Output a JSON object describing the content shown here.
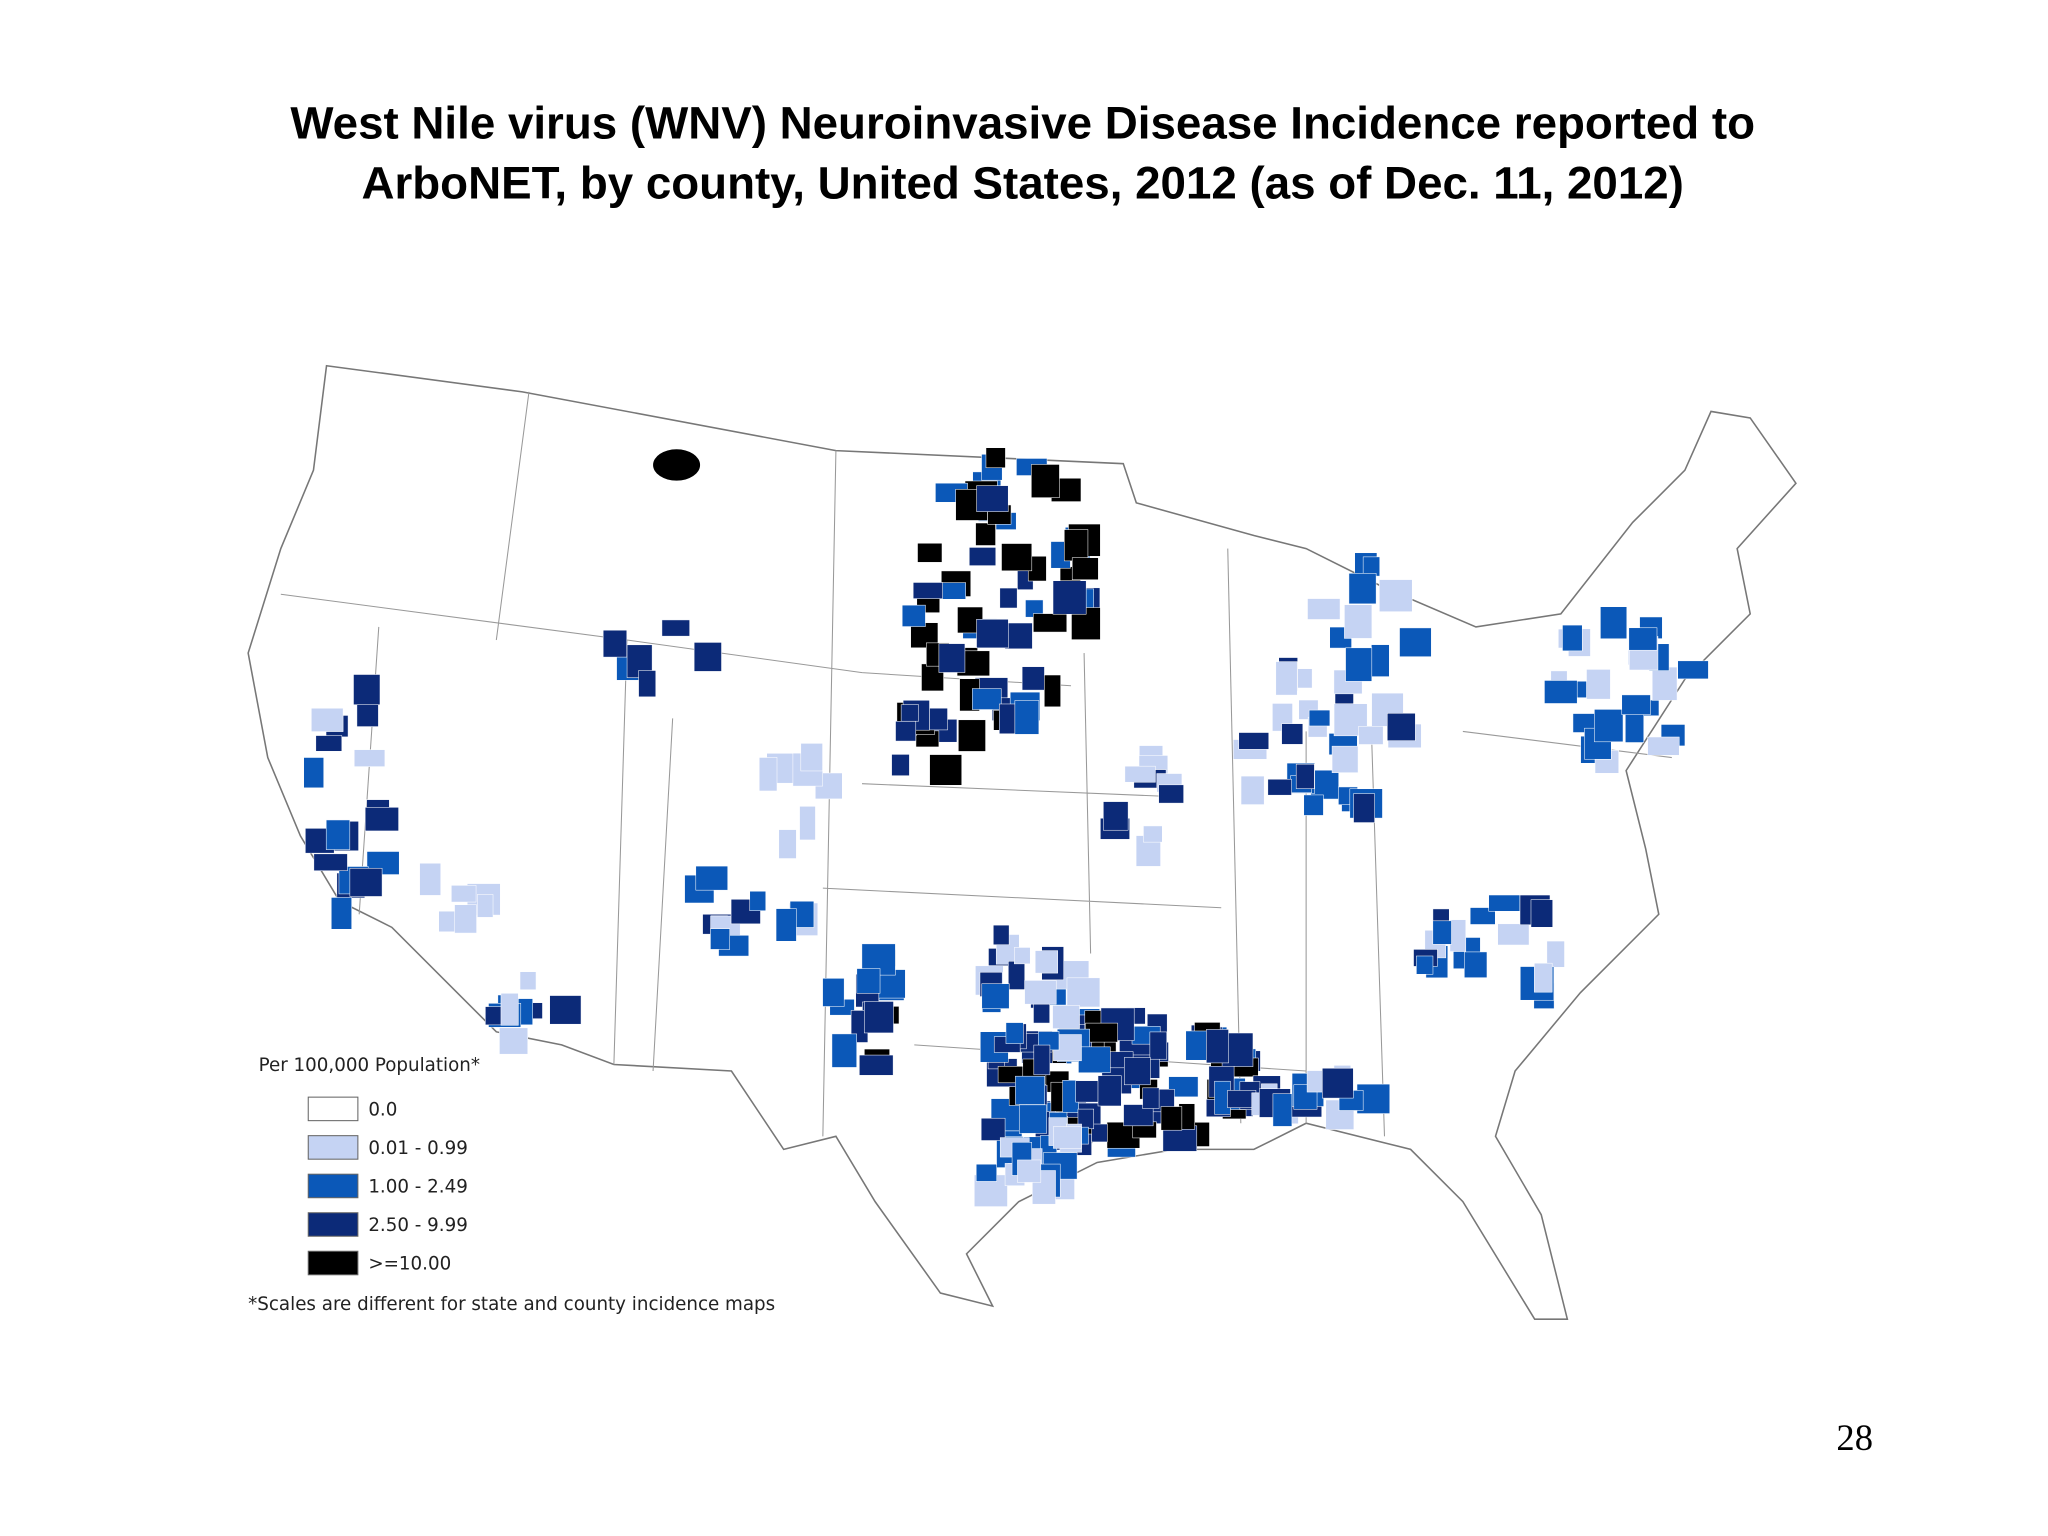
{
  "title": {
    "lines": [
      "West Nile virus (WNV) Neuroinvasive Disease Incidence reported to",
      "ArboNET, by county, United States, 2012 (as of Dec. 11, 2012)"
    ]
  },
  "legend": {
    "title": "Per 100,000 Population*",
    "items": [
      {
        "label": "0.0",
        "color": "#ffffff"
      },
      {
        "label": "0.01 - 0.99",
        "color": "#c5d3f3"
      },
      {
        "label": "1.00 - 2.49",
        "color": "#0b58b8"
      },
      {
        "label": "2.50 - 9.99",
        "color": "#0c2a78"
      },
      {
        "label": ">=10.00",
        "color": "#000000"
      }
    ]
  },
  "footnote": "*Scales are different for state and county incidence maps",
  "page_number": "28"
}
